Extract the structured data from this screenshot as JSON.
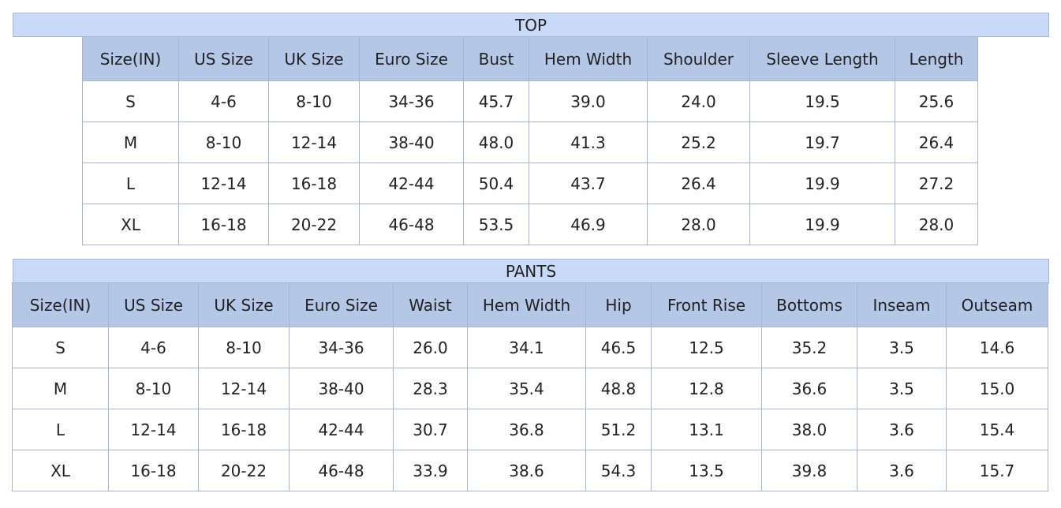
{
  "top": {
    "title": "TOP",
    "header": [
      "Size(IN)",
      "US Size",
      "UK Size",
      "Euro Size",
      "Bust",
      "Hem Width",
      "Shoulder",
      "Sleeve Length",
      "Length"
    ],
    "rows": [
      [
        "S",
        "4-6",
        "8-10",
        "34-36",
        "45.7",
        "39.0",
        "24.0",
        "19.5",
        "25.6"
      ],
      [
        "M",
        "8-10",
        "12-14",
        "38-40",
        "48.0",
        "41.3",
        "25.2",
        "19.7",
        "26.4"
      ],
      [
        "L",
        "12-14",
        "16-18",
        "42-44",
        "50.4",
        "43.7",
        "26.4",
        "19.9",
        "27.2"
      ],
      [
        "XL",
        "16-18",
        "20-22",
        "46-48",
        "53.5",
        "46.9",
        "28.0",
        "19.9",
        "28.0"
      ]
    ]
  },
  "pants": {
    "title": "PANTS",
    "header": [
      "Size(IN)",
      "US Size",
      "UK Size",
      "Euro Size",
      "Waist",
      "Hem Width",
      "Hip",
      "Front Rise",
      "Bottoms",
      "Inseam",
      "Outseam"
    ],
    "rows": [
      [
        "S",
        "4-6",
        "8-10",
        "34-36",
        "26.0",
        "34.1",
        "46.5",
        "12.5",
        "35.2",
        "3.5",
        "14.6"
      ],
      [
        "M",
        "8-10",
        "12-14",
        "38-40",
        "28.3",
        "35.4",
        "48.8",
        "12.8",
        "36.6",
        "3.5",
        "15.0"
      ],
      [
        "L",
        "12-14",
        "16-18",
        "42-44",
        "30.7",
        "36.8",
        "51.2",
        "13.1",
        "38.0",
        "3.6",
        "15.4"
      ],
      [
        "XL",
        "16-18",
        "20-22",
        "46-48",
        "33.9",
        "38.6",
        "54.3",
        "13.5",
        "39.8",
        "3.6",
        "15.7"
      ]
    ]
  }
}
